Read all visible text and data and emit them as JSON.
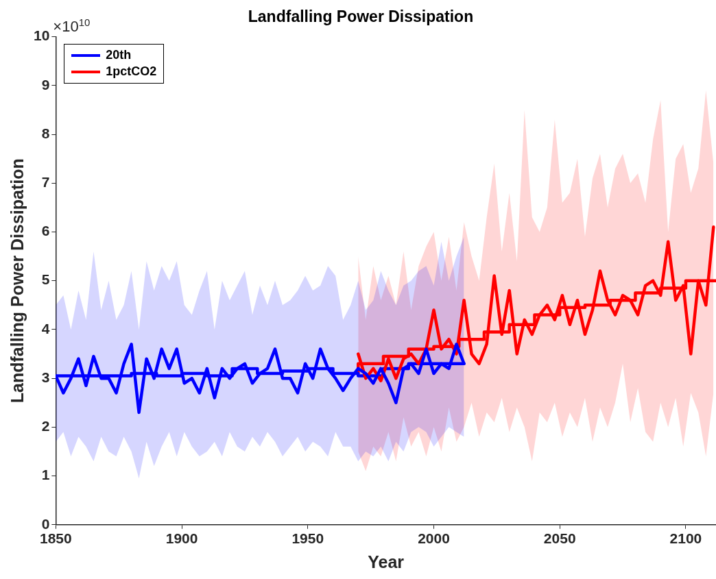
{
  "chart_data": {
    "type": "line",
    "title": "Landfalling Power Dissipation",
    "xlabel": "Year",
    "ylabel": "Landfalling Power Dissipation",
    "annotations": [
      "×10$^{10}$"
    ],
    "xlim": [
      1850,
      2112
    ],
    "xticks": [
      1850,
      1900,
      1950,
      2000,
      2050,
      2100
    ],
    "ylim": [
      0,
      10
    ],
    "yticks": [
      0,
      1,
      2,
      3,
      4,
      5,
      6,
      7,
      8,
      9,
      10
    ],
    "grid": false,
    "legend": "top left",
    "marker": "none",
    "line_style": "solid",
    "series": [
      {
        "name": "20th",
        "color": "#0000ff",
        "x": [
          1850,
          1853,
          1856,
          1859,
          1862,
          1865,
          1868,
          1871,
          1874,
          1877,
          1880,
          1883,
          1886,
          1889,
          1892,
          1895,
          1898,
          1901,
          1904,
          1907,
          1910,
          1913,
          1916,
          1919,
          1922,
          1925,
          1928,
          1931,
          1934,
          1937,
          1940,
          1943,
          1946,
          1949,
          1952,
          1955,
          1958,
          1961,
          1964,
          1967,
          1970,
          1973,
          1976,
          1979,
          1982,
          1985,
          1988,
          1991,
          1994,
          1997,
          2000,
          2003,
          2006,
          2009,
          2012
        ],
        "values": [
          3.05,
          2.7,
          3.0,
          3.4,
          2.85,
          3.45,
          3.0,
          3.0,
          2.7,
          3.3,
          3.7,
          2.3,
          3.4,
          3.0,
          3.6,
          3.2,
          3.6,
          2.9,
          3.0,
          2.7,
          3.2,
          2.6,
          3.2,
          3.0,
          3.2,
          3.3,
          2.9,
          3.1,
          3.2,
          3.6,
          3.0,
          3.0,
          2.7,
          3.3,
          3.0,
          3.6,
          3.2,
          3.0,
          2.75,
          3.0,
          3.2,
          3.1,
          2.9,
          3.2,
          2.9,
          2.5,
          3.2,
          3.3,
          3.1,
          3.6,
          3.1,
          3.3,
          3.2,
          3.7,
          3.3
        ],
        "upper": [
          4.5,
          4.7,
          4.0,
          4.8,
          4.2,
          5.6,
          4.4,
          5.0,
          4.2,
          4.5,
          5.2,
          4.0,
          5.4,
          4.8,
          5.3,
          5.0,
          5.4,
          4.5,
          4.3,
          4.8,
          5.2,
          4.0,
          5.0,
          4.6,
          4.9,
          5.2,
          4.3,
          4.9,
          4.5,
          5.0,
          4.5,
          4.6,
          4.8,
          5.1,
          4.8,
          4.9,
          5.3,
          5.1,
          4.2,
          4.5,
          5.0,
          4.4,
          4.6,
          5.2,
          4.8,
          4.5,
          4.9,
          5.0,
          5.2,
          5.3,
          4.9,
          5.8,
          5.0,
          5.5,
          5.9
        ],
        "lower": [
          1.7,
          1.9,
          1.4,
          1.8,
          1.6,
          1.3,
          1.8,
          1.5,
          1.4,
          1.8,
          1.5,
          0.95,
          1.7,
          1.2,
          1.6,
          1.9,
          1.4,
          1.9,
          1.6,
          1.4,
          1.5,
          1.7,
          1.4,
          1.9,
          1.6,
          1.5,
          1.8,
          1.6,
          1.9,
          1.7,
          1.4,
          1.6,
          1.8,
          1.5,
          1.7,
          1.6,
          1.4,
          1.9,
          1.6,
          1.6,
          1.3,
          1.5,
          1.4,
          1.6,
          1.3,
          1.7,
          1.5,
          1.9,
          2.0,
          1.9,
          1.6,
          1.8,
          2.0,
          1.9,
          1.8
        ]
      },
      {
        "name": "1pctCO2",
        "color": "#ff0000",
        "x": [
          1970,
          1973,
          1976,
          1979,
          1982,
          1985,
          1988,
          1991,
          1994,
          1997,
          2000,
          2003,
          2006,
          2009,
          2012,
          2015,
          2018,
          2021,
          2024,
          2027,
          2030,
          2033,
          2036,
          2039,
          2042,
          2045,
          2048,
          2051,
          2054,
          2057,
          2060,
          2063,
          2066,
          2069,
          2072,
          2075,
          2078,
          2081,
          2084,
          2087,
          2090,
          2093,
          2096,
          2099,
          2102,
          2105,
          2108,
          2111
        ],
        "values": [
          3.5,
          3.0,
          3.2,
          2.95,
          3.4,
          3.0,
          3.4,
          3.5,
          3.3,
          3.6,
          4.4,
          3.6,
          3.8,
          3.5,
          4.6,
          3.5,
          3.3,
          3.7,
          5.1,
          3.9,
          4.8,
          3.5,
          4.2,
          3.9,
          4.3,
          4.5,
          4.2,
          4.7,
          4.1,
          4.6,
          3.9,
          4.4,
          5.2,
          4.6,
          4.3,
          4.7,
          4.6,
          4.3,
          4.9,
          5.0,
          4.7,
          5.8,
          4.6,
          4.9,
          3.5,
          5.0,
          4.5,
          6.1
        ],
        "upper": [
          5.5,
          4.2,
          5.3,
          4.6,
          5.1,
          4.5,
          5.6,
          4.4,
          5.3,
          5.7,
          6.0,
          5.0,
          5.9,
          4.8,
          6.2,
          5.5,
          5.0,
          6.3,
          7.4,
          5.6,
          6.8,
          5.4,
          8.5,
          6.3,
          6.0,
          6.5,
          8.3,
          6.6,
          6.8,
          7.5,
          5.9,
          7.1,
          7.6,
          6.5,
          7.3,
          7.6,
          7.0,
          7.2,
          6.6,
          7.9,
          8.7,
          6.0,
          7.5,
          7.8,
          6.8,
          7.3,
          8.9,
          7.4
        ],
        "lower": [
          1.5,
          1.1,
          1.6,
          1.4,
          1.9,
          1.3,
          2.2,
          1.6,
          1.9,
          1.4,
          2.0,
          1.5,
          2.4,
          1.7,
          2.0,
          2.5,
          1.8,
          2.3,
          2.1,
          2.6,
          1.9,
          2.4,
          2.0,
          1.3,
          2.3,
          2.1,
          2.5,
          1.8,
          2.3,
          2.0,
          2.6,
          1.7,
          2.4,
          2.0,
          2.5,
          3.3,
          2.1,
          2.8,
          1.9,
          1.7,
          2.5,
          2.0,
          2.6,
          1.6,
          2.7,
          2.3,
          1.4,
          2.7
        ]
      },
      {
        "type": "step",
        "color": "#0000ff",
        "x": [
          1850,
          1860,
          1870,
          1880,
          1890,
          1900,
          1910,
          1920,
          1930,
          1940,
          1950,
          1960,
          1970,
          1980,
          1990,
          2000,
          2012
        ],
        "values": [
          3.0,
          3.05,
          3.05,
          3.05,
          3.1,
          3.05,
          3.1,
          3.05,
          3.2,
          3.1,
          3.15,
          3.2,
          3.1,
          3.05,
          3.2,
          3.3,
          3.3
        ]
      },
      {
        "type": "step",
        "color": "#ff0000",
        "x": [
          1970,
          1980,
          1990,
          2000,
          2010,
          2020,
          2030,
          2040,
          2050,
          2060,
          2070,
          2080,
          2090,
          2100,
          2110,
          2112
        ],
        "values": [
          3.1,
          3.3,
          3.45,
          3.6,
          3.65,
          3.8,
          3.95,
          4.1,
          4.3,
          4.45,
          4.5,
          4.6,
          4.75,
          4.85,
          5.0,
          5.0
        ]
      }
    ]
  }
}
